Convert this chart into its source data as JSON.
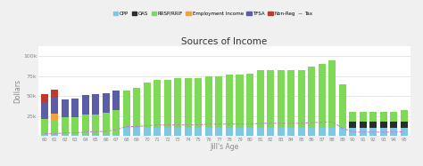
{
  "title": "Sources of Income",
  "xlabel": "Jill's Age",
  "ylabel": "Dollars",
  "ages": [
    60,
    61,
    62,
    63,
    64,
    65,
    66,
    67,
    68,
    69,
    70,
    71,
    72,
    73,
    74,
    75,
    76,
    77,
    78,
    79,
    80,
    81,
    82,
    83,
    84,
    85,
    86,
    87,
    88,
    89,
    90,
    91,
    92,
    93,
    94,
    95
  ],
  "cpp": [
    2000,
    2000,
    2000,
    2000,
    2000,
    2000,
    2000,
    2000,
    10000,
    10000,
    10000,
    10000,
    10000,
    10000,
    10000,
    10000,
    10000,
    10000,
    10000,
    10000,
    10000,
    10000,
    10000,
    10000,
    10000,
    10000,
    10000,
    10000,
    10000,
    10000,
    10000,
    10000,
    10000,
    10000,
    10000,
    10000
  ],
  "oas": [
    0,
    0,
    0,
    0,
    0,
    0,
    0,
    0,
    0,
    0,
    0,
    0,
    0,
    0,
    0,
    0,
    0,
    0,
    0,
    0,
    0,
    0,
    0,
    0,
    0,
    0,
    0,
    0,
    0,
    0,
    8000,
    8000,
    8000,
    8000,
    8000,
    8000
  ],
  "rrsp": [
    20000,
    18000,
    22000,
    22000,
    25000,
    25000,
    27000,
    30000,
    47000,
    50000,
    57000,
    60000,
    60000,
    62000,
    62000,
    62000,
    65000,
    65000,
    67000,
    67000,
    68000,
    72000,
    72000,
    72000,
    72000,
    72000,
    77000,
    80000,
    85000,
    55000,
    12000,
    12000,
    12000,
    12000,
    12000,
    14000
  ],
  "employment": [
    0,
    8000,
    0,
    0,
    0,
    0,
    0,
    0,
    0,
    0,
    0,
    0,
    0,
    0,
    0,
    0,
    0,
    0,
    0,
    0,
    0,
    0,
    0,
    0,
    0,
    0,
    0,
    0,
    0,
    0,
    0,
    0,
    0,
    0,
    0,
    0
  ],
  "tfsa": [
    20000,
    20000,
    22000,
    23000,
    24000,
    25000,
    25000,
    25000,
    0,
    0,
    0,
    0,
    0,
    0,
    0,
    0,
    0,
    0,
    0,
    0,
    0,
    0,
    0,
    0,
    0,
    0,
    0,
    0,
    0,
    0,
    0,
    0,
    0,
    0,
    0,
    0
  ],
  "nonreg": [
    10000,
    10000,
    0,
    0,
    0,
    0,
    0,
    0,
    0,
    0,
    0,
    0,
    0,
    0,
    0,
    0,
    0,
    0,
    0,
    0,
    0,
    0,
    0,
    0,
    0,
    0,
    0,
    0,
    0,
    0,
    0,
    0,
    0,
    0,
    0,
    0
  ],
  "tax": [
    3000,
    3000,
    4000,
    4000,
    5000,
    5500,
    6000,
    8000,
    12000,
    12000,
    13000,
    14000,
    14000,
    14000,
    14000,
    14000,
    15000,
    15000,
    15000,
    15000,
    15000,
    16000,
    16000,
    16000,
    16000,
    16000,
    17000,
    17000,
    18000,
    10000,
    5000,
    5000,
    5000,
    5000,
    5000,
    5500
  ],
  "colors": {
    "cpp": "#7ec8e3",
    "oas": "#2c2c2c",
    "rrsp": "#7ed957",
    "employment": "#f4a236",
    "tfsa": "#5b5ea6",
    "nonreg": "#c0392b",
    "tax": "#cc77dd"
  },
  "ylim": [
    0,
    112000
  ],
  "yticks": [
    25000,
    50000,
    75000,
    100000
  ],
  "ytick_labels": [
    "25k",
    "50k",
    "75k",
    "100k"
  ],
  "bg_color": "#f0f0f0",
  "plot_bg": "#ffffff",
  "grid_color": "#dddddd"
}
